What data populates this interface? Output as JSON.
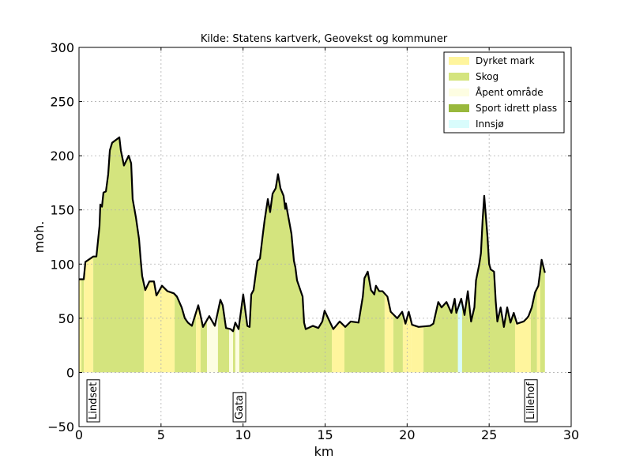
{
  "chart_data": {
    "type": "area",
    "title": "Kilde: Statens kartverk, Geovekst og kommuner",
    "xlabel": "km",
    "ylabel": "moh.",
    "xlim": [
      0,
      30
    ],
    "ylim": [
      -50,
      300
    ],
    "xticks": [
      0,
      5,
      10,
      15,
      20,
      25,
      30
    ],
    "yticks": [
      {
        "value": -50,
        "label": "−50"
      },
      0,
      50,
      100,
      150,
      200,
      250,
      300
    ],
    "grid": true,
    "legend_position": "upper right",
    "line_color": "#000000",
    "legend": [
      {
        "name": "Dyrket mark",
        "color": "#fff59d"
      },
      {
        "name": "Skog",
        "color": "#d4e47e"
      },
      {
        "name": "Åpent område",
        "color": "#fdfde2"
      },
      {
        "name": "Sport idrett plass",
        "color": "#99b83c"
      },
      {
        "name": "Innsjø",
        "color": "#d9fcfc"
      }
    ],
    "x": [
      0,
      0.29,
      0.39,
      0.87,
      1.06,
      1.25,
      1.3,
      1.4,
      1.49,
      1.64,
      1.78,
      1.88,
      2.02,
      2.46,
      2.55,
      2.74,
      3.03,
      3.18,
      3.27,
      3.47,
      3.66,
      3.76,
      3.85,
      4.04,
      4.29,
      4.57,
      4.72,
      5.06,
      5.39,
      5.78,
      5.97,
      6.26,
      6.45,
      6.64,
      6.88,
      7.27,
      7.56,
      7.94,
      8.28,
      8.62,
      8.76,
      8.96,
      9.24,
      9.39,
      9.53,
      9.73,
      9.92,
      10.01,
      10.26,
      10.4,
      10.5,
      10.64,
      10.88,
      11.03,
      11.17,
      11.31,
      11.51,
      11.65,
      11.8,
      11.99,
      12.13,
      12.28,
      12.47,
      12.57,
      12.61,
      12.95,
      13.1,
      13.19,
      13.29,
      13.63,
      13.72,
      13.82,
      14.25,
      14.59,
      14.83,
      14.97,
      15.31,
      15.5,
      15.89,
      16.23,
      16.56,
      17.04,
      17.3,
      17.4,
      17.6,
      17.8,
      18.0,
      18.1,
      18.3,
      18.5,
      18.8,
      19.0,
      19.4,
      19.7,
      19.9,
      20.1,
      20.3,
      20.7,
      21.4,
      21.6,
      21.9,
      22.1,
      22.4,
      22.7,
      22.9,
      23.0,
      23.3,
      23.5,
      23.7,
      23.9,
      24.1,
      24.2,
      24.4,
      24.5,
      24.6,
      24.7,
      24.9,
      25.0,
      25.1,
      25.3,
      25.4,
      25.5,
      25.7,
      25.9,
      26.1,
      26.3,
      26.5,
      26.7,
      27.1,
      27.3,
      27.4,
      27.6,
      27.8,
      28.0,
      28.2,
      28.4
    ],
    "values": [
      86,
      86,
      102,
      107,
      107,
      135,
      155,
      153,
      166,
      167,
      183,
      205,
      212,
      217,
      205,
      191,
      200,
      193,
      160,
      143,
      123,
      104,
      89,
      76,
      84,
      84,
      71,
      80,
      75,
      73,
      70,
      60,
      50,
      46,
      43,
      62,
      42,
      52,
      43,
      67,
      62,
      41,
      40,
      38,
      46,
      40,
      62,
      72,
      43,
      42,
      72,
      76,
      103,
      105,
      123,
      140,
      160,
      148,
      165,
      170,
      183,
      170,
      163,
      151,
      156,
      128,
      103,
      97,
      85,
      70,
      46,
      40,
      43,
      41,
      47,
      57,
      46,
      40,
      47,
      42,
      47,
      46,
      70,
      87,
      93,
      76,
      72,
      80,
      75,
      75,
      70,
      56,
      50,
      56,
      45,
      56,
      44,
      42,
      43,
      45,
      65,
      60,
      65,
      55,
      68,
      55,
      68,
      53,
      75,
      47,
      60,
      85,
      100,
      110,
      140,
      163,
      125,
      100,
      95,
      93,
      66,
      47,
      60,
      42,
      60,
      46,
      55,
      45,
      47,
      50,
      52,
      60,
      74,
      80,
      104,
      92
    ],
    "segments": [
      {
        "start": 0,
        "end": 0.15,
        "land": "Dyrket mark"
      },
      {
        "start": 0.15,
        "end": 0.3,
        "land": "Skog"
      },
      {
        "start": 0.3,
        "end": 0.87,
        "land": "Dyrket mark"
      },
      {
        "start": 0.87,
        "end": 3.95,
        "land": "Skog"
      },
      {
        "start": 3.95,
        "end": 5.83,
        "land": "Dyrket mark"
      },
      {
        "start": 5.83,
        "end": 7.13,
        "land": "Skog"
      },
      {
        "start": 7.13,
        "end": 7.41,
        "land": "Dyrket mark"
      },
      {
        "start": 7.41,
        "end": 7.8,
        "land": "Skog"
      },
      {
        "start": 7.8,
        "end": 8.47,
        "land": "Åpent område"
      },
      {
        "start": 8.47,
        "end": 9.15,
        "land": "Skog"
      },
      {
        "start": 9.15,
        "end": 9.39,
        "land": "Åpent område"
      },
      {
        "start": 9.39,
        "end": 9.53,
        "land": "Skog"
      },
      {
        "start": 9.53,
        "end": 9.77,
        "land": "Åpent område"
      },
      {
        "start": 9.77,
        "end": 15.41,
        "land": "Skog"
      },
      {
        "start": 15.41,
        "end": 16.18,
        "land": "Dyrket mark"
      },
      {
        "start": 16.18,
        "end": 18.63,
        "land": "Skog"
      },
      {
        "start": 18.63,
        "end": 19.16,
        "land": "Dyrket mark"
      },
      {
        "start": 19.16,
        "end": 19.74,
        "land": "Skog"
      },
      {
        "start": 19.74,
        "end": 20.27,
        "land": "Dyrket mark"
      },
      {
        "start": 20.27,
        "end": 21.0,
        "land": "Dyrket mark"
      },
      {
        "start": 21.0,
        "end": 23.1,
        "land": "Skog"
      },
      {
        "start": 23.1,
        "end": 23.35,
        "land": "Innsjø"
      },
      {
        "start": 23.35,
        "end": 26.58,
        "land": "Skog"
      },
      {
        "start": 26.58,
        "end": 27.54,
        "land": "Dyrket mark"
      },
      {
        "start": 27.54,
        "end": 27.92,
        "land": "Skog"
      },
      {
        "start": 27.92,
        "end": 28.11,
        "land": "Dyrket mark"
      },
      {
        "start": 28.11,
        "end": 28.4,
        "land": "Skog"
      }
    ],
    "annotations": [
      {
        "text": "Lindset",
        "x": 0.82
      },
      {
        "text": "Gata",
        "x": 9.73
      },
      {
        "text": "Lillehof",
        "x": 27.5
      }
    ]
  }
}
